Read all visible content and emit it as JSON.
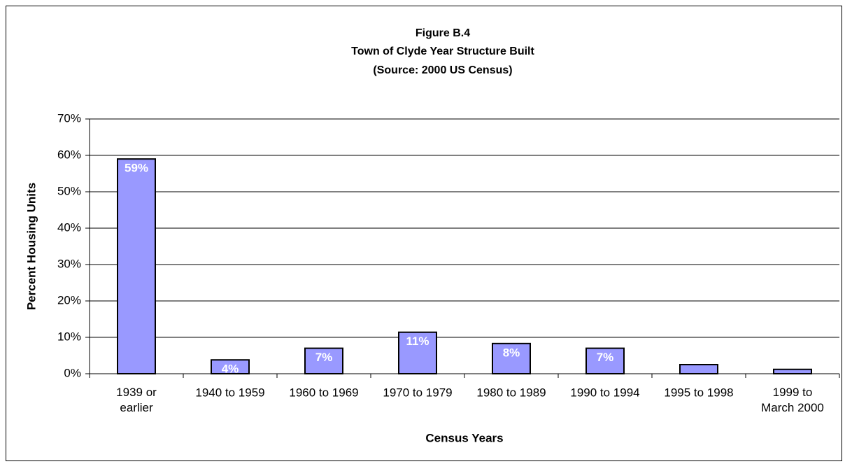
{
  "chart_data": {
    "type": "bar",
    "title": [
      "Figure B.4",
      "Town of Clyde Year Structure Built",
      "(Source:  2000 US Census)"
    ],
    "x_label": "Census Years",
    "y_label": "Percent Housing Units",
    "categories": [
      "1939 or\nearlier",
      "1940 to 1959",
      "1960 to 1969",
      "1970 to 1979",
      "1980 to 1989",
      "1990 to 1994",
      "1995 to 1998",
      "1999 to\nMarch 2000"
    ],
    "values": [
      59,
      3.8,
      7,
      11.4,
      8.3,
      7,
      2.5,
      1.2
    ],
    "value_labels": [
      "59%",
      "4%",
      "7%",
      "11%",
      "8%",
      "7%",
      null,
      null
    ],
    "color": "#9999ff",
    "ylim": [
      0,
      70
    ],
    "yticks": [
      {
        "value": 0,
        "label": "0%"
      },
      {
        "value": 10,
        "label": "10%"
      },
      {
        "value": 20,
        "label": "20%"
      },
      {
        "value": 30,
        "label": "30%"
      },
      {
        "value": 40,
        "label": "40%"
      },
      {
        "value": 50,
        "label": "50%"
      },
      {
        "value": 60,
        "label": "60%"
      },
      {
        "value": 70,
        "label": "70%"
      }
    ],
    "grid": true
  }
}
